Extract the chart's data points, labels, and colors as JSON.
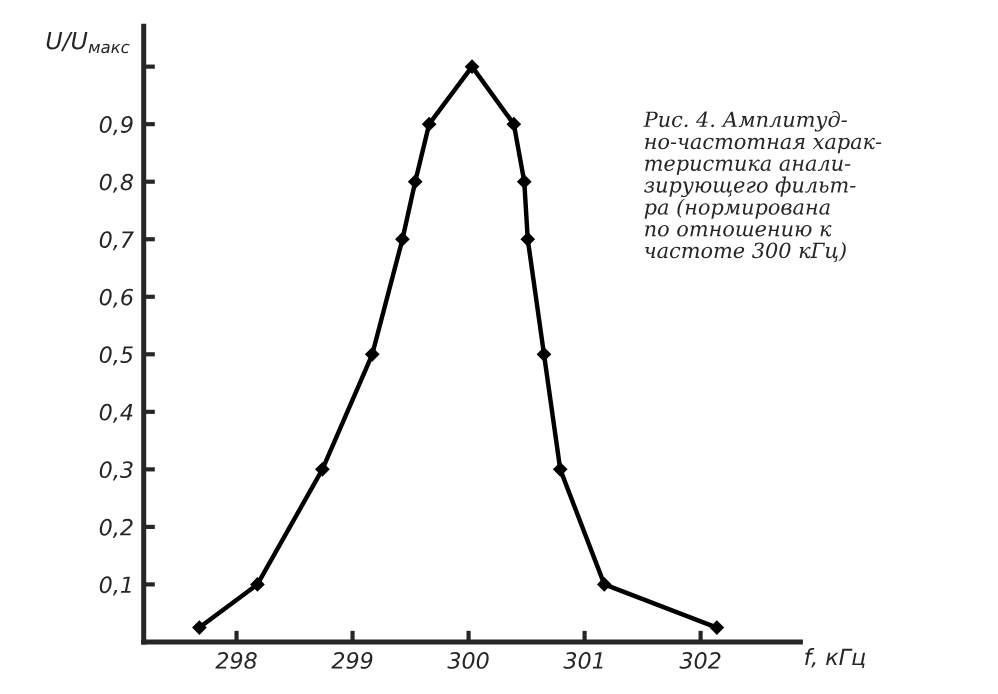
{
  "chart_data": {
    "type": "line",
    "xlabel": "f, кГц",
    "ylabel": "U/U$_{макс}$",
    "annotations": [
      "Рис. 4. Амплитуд-\nно-частотная харак-\nтеристика анали-\nзирующего фильт-\nра (нормирована\nпо отношению к\nчастоте 300 кГц)"
    ],
    "x": [
      297.68,
      298.18,
      298.74,
      299.17,
      299.43,
      299.54,
      299.66,
      300.03,
      300.39,
      300.48,
      300.51,
      300.65,
      300.79,
      301.17,
      302.14
    ],
    "series": [
      {
        "color": "#000000",
        "values": [
          0.025,
          0.1,
          0.3,
          0.5,
          0.7,
          0.8,
          0.9,
          1.0,
          0.9,
          0.8,
          0.7,
          0.5,
          0.3,
          0.1,
          0.025
        ]
      }
    ],
    "xlim": [
      297.2,
      302.86
    ],
    "ylim": [
      0,
      1.07
    ],
    "xticks": [
      298,
      299,
      300,
      301,
      302
    ],
    "yticks": [
      {
        "value": 0.1,
        "label": "0,1"
      },
      {
        "value": 0.2,
        "label": "0,2"
      },
      {
        "value": 0.3,
        "label": "0,3"
      },
      {
        "value": 0.4,
        "label": "0,4"
      },
      {
        "value": 0.5,
        "label": "0,5"
      },
      {
        "value": 0.6,
        "label": "0,6"
      },
      {
        "value": 0.7,
        "label": "0,7"
      },
      {
        "value": 0.8,
        "label": "0,8"
      },
      {
        "value": 0.9,
        "label": "0,9"
      },
      {
        "value": 1.0,
        "label": null
      }
    ],
    "grid": false,
    "legend": false,
    "marker": "diamond",
    "line_style": "solid"
  }
}
